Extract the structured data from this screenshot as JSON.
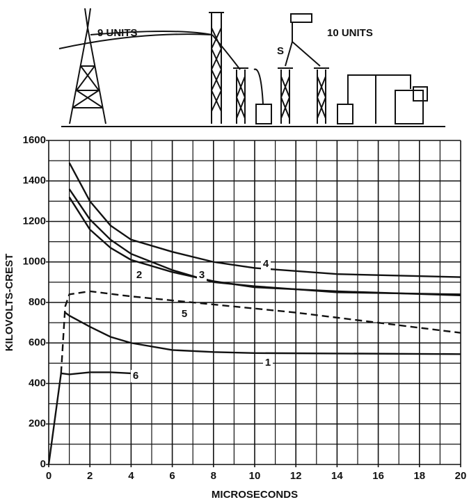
{
  "illustration": {
    "labels": [
      "9 UNITS",
      "10 UNITS",
      "S"
    ]
  },
  "chart_data": {
    "type": "line",
    "xlabel": "MICROSECONDS",
    "ylabel": "KILOVOLTS-CREST",
    "xlim": [
      0,
      20
    ],
    "ylim": [
      0,
      1600
    ],
    "xticks": [
      0,
      2,
      4,
      6,
      8,
      10,
      12,
      14,
      16,
      18,
      20
    ],
    "yticks": [
      0,
      200,
      400,
      600,
      800,
      1000,
      1200,
      1400,
      1600
    ],
    "xminor": [
      1,
      3,
      5,
      7,
      9,
      11,
      13,
      15,
      17,
      19
    ],
    "yminor": [
      100,
      300,
      500,
      700,
      900,
      1100,
      1300,
      1500
    ],
    "grid": true,
    "series": [
      {
        "name": "1",
        "color": "#111111",
        "dashed": false,
        "x": [
          0.8,
          1,
          2,
          3,
          4,
          6,
          8,
          10,
          14,
          20
        ],
        "values": [
          750,
          735,
          680,
          630,
          600,
          565,
          555,
          550,
          548,
          545
        ]
      },
      {
        "name": "2",
        "color": "#111111",
        "dashed": false,
        "x": [
          1,
          2,
          3,
          4,
          6,
          8,
          10,
          14,
          20
        ],
        "values": [
          1320,
          1160,
          1070,
          1010,
          950,
          905,
          875,
          855,
          835
        ]
      },
      {
        "name": "3",
        "color": "#111111",
        "dashed": false,
        "x": [
          1,
          2,
          3,
          4,
          6,
          8,
          10,
          14,
          20
        ],
        "values": [
          1360,
          1210,
          1110,
          1040,
          960,
          900,
          880,
          850,
          840
        ]
      },
      {
        "name": "4",
        "color": "#111111",
        "dashed": false,
        "x": [
          1,
          2,
          3,
          4,
          6,
          8,
          10,
          14,
          20
        ],
        "values": [
          1490,
          1300,
          1180,
          1110,
          1050,
          1000,
          970,
          940,
          925
        ]
      },
      {
        "name": "5",
        "color": "#111111",
        "dashed": true,
        "x": [
          0.6,
          0.8,
          1,
          2,
          4,
          8,
          12,
          16,
          20
        ],
        "values": [
          450,
          780,
          840,
          855,
          830,
          790,
          750,
          700,
          650
        ]
      },
      {
        "name": "6",
        "color": "#111111",
        "dashed": false,
        "x": [
          0,
          0.6,
          1,
          2,
          3,
          4
        ],
        "values": [
          0,
          450,
          445,
          455,
          455,
          450
        ]
      }
    ]
  }
}
